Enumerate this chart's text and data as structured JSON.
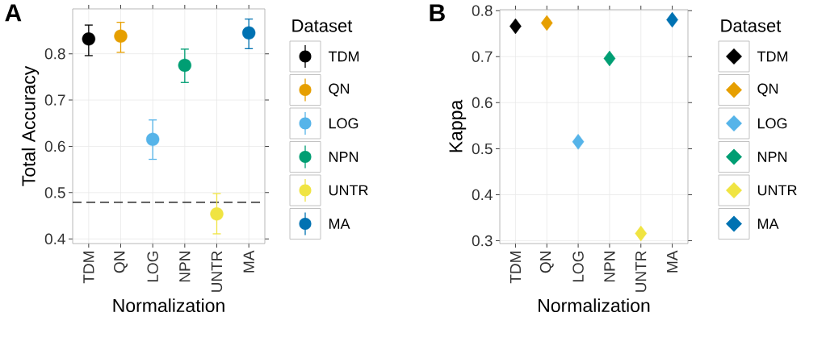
{
  "chart_data": [
    {
      "type": "scatter",
      "title": "A",
      "xlabel": "Normalization",
      "ylabel": "Total Accuracy",
      "legend_title": "Dataset",
      "legend": "right",
      "grid": true,
      "marker": "circle",
      "categories": [
        "TDM",
        "QN",
        "LOG",
        "NPN",
        "UNTR",
        "MA"
      ],
      "ylim": [
        0.39,
        0.897
      ],
      "yticks": [
        0.4,
        0.5,
        0.6,
        0.7,
        0.8
      ],
      "ref_lines": [
        {
          "axis": "y",
          "value": 0.479,
          "color": "#000000",
          "line_style": "dashed"
        }
      ],
      "series": [
        {
          "name": "TDM",
          "color": "#000000",
          "values": [
            0.832,
            null,
            null,
            null,
            null,
            null
          ],
          "errors": [
            [
              0.796,
              0.862
            ],
            null,
            null,
            null,
            null,
            null
          ]
        },
        {
          "name": "QN",
          "color": "#E69F00",
          "values": [
            null,
            0.838,
            null,
            null,
            null,
            null
          ],
          "errors": [
            null,
            [
              0.803,
              0.868
            ],
            null,
            null,
            null,
            null
          ]
        },
        {
          "name": "LOG",
          "color": "#56B4E9",
          "values": [
            null,
            null,
            0.615,
            null,
            null,
            null
          ],
          "errors": [
            null,
            null,
            [
              0.572,
              0.657
            ],
            null,
            null,
            null
          ]
        },
        {
          "name": "NPN",
          "color": "#009E73",
          "values": [
            null,
            null,
            null,
            0.775,
            null,
            null
          ],
          "errors": [
            null,
            null,
            null,
            [
              0.738,
              0.81
            ],
            null,
            null
          ]
        },
        {
          "name": "UNTR",
          "color": "#F0E442",
          "values": [
            null,
            null,
            null,
            null,
            0.454,
            null
          ],
          "errors": [
            null,
            null,
            null,
            null,
            [
              0.411,
              0.498
            ],
            null
          ]
        },
        {
          "name": "MA",
          "color": "#0072B2",
          "values": [
            null,
            null,
            null,
            null,
            null,
            0.845
          ],
          "errors": [
            null,
            null,
            null,
            null,
            null,
            [
              0.811,
              0.875
            ]
          ]
        }
      ]
    },
    {
      "type": "scatter",
      "title": "B",
      "xlabel": "Normalization",
      "ylabel": "Kappa",
      "legend_title": "Dataset",
      "legend": "right",
      "grid": true,
      "marker": "diamond",
      "categories": [
        "TDM",
        "QN",
        "LOG",
        "NPN",
        "UNTR",
        "MA"
      ],
      "ylim": [
        0.294,
        0.802
      ],
      "yticks": [
        0.3,
        0.4,
        0.5,
        0.6,
        0.7,
        0.8
      ],
      "series": [
        {
          "name": "TDM",
          "color": "#000000",
          "values": [
            0.766,
            null,
            null,
            null,
            null,
            null
          ]
        },
        {
          "name": "QN",
          "color": "#E69F00",
          "values": [
            null,
            0.773,
            null,
            null,
            null,
            null
          ]
        },
        {
          "name": "LOG",
          "color": "#56B4E9",
          "values": [
            null,
            null,
            0.515,
            null,
            null,
            null
          ]
        },
        {
          "name": "NPN",
          "color": "#009E73",
          "values": [
            null,
            null,
            null,
            0.696,
            null,
            null
          ]
        },
        {
          "name": "UNTR",
          "color": "#F0E442",
          "values": [
            null,
            null,
            null,
            null,
            0.316,
            null
          ]
        },
        {
          "name": "MA",
          "color": "#0072B2",
          "values": [
            null,
            null,
            null,
            null,
            null,
            0.78
          ]
        }
      ]
    }
  ]
}
